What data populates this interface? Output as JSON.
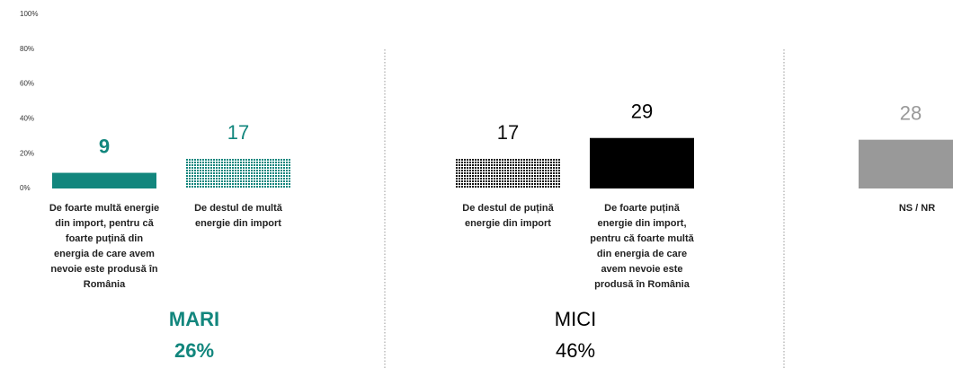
{
  "chart_data": {
    "type": "bar",
    "categories": [
      "De foarte multă energie din import, pentru că foarte puțină din energia de care avem nevoie este produsă în România",
      "De destul de multă energie din import",
      "De destul de puțină energie din import",
      "De foarte puțină energie din import, pentru că foarte multă din energia de care avem nevoie este produsă în România",
      "NS / NR"
    ],
    "values": [
      9,
      17,
      17,
      29,
      28
    ],
    "colors": [
      "#12867d",
      "#12867d",
      "#111111",
      "#000000",
      "#999999"
    ],
    "patterned": [
      false,
      true,
      true,
      false,
      false
    ],
    "ylim": [
      0,
      100
    ],
    "yticks": [
      {
        "value": 0,
        "label": "0%"
      },
      {
        "value": 20,
        "label": "20%"
      },
      {
        "value": 40,
        "label": "40%"
      },
      {
        "value": 60,
        "label": "60%"
      },
      {
        "value": 80,
        "label": "80%"
      },
      {
        "value": 100,
        "label": "100%"
      }
    ],
    "groups": [
      {
        "name": "MARI",
        "total": "26%",
        "color": "#12867d"
      },
      {
        "name": "MICI",
        "total": "46%",
        "color": "#000000"
      }
    ]
  }
}
